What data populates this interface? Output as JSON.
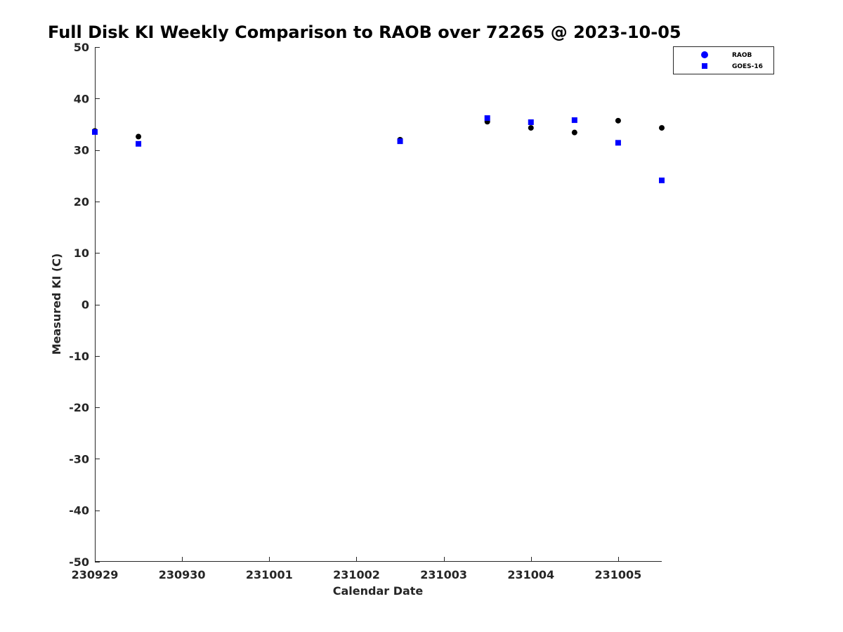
{
  "chart_data": {
    "type": "scatter",
    "title": "Full Disk KI Weekly Comparison to RAOB over 72265 @ 2023-10-05",
    "xlabel": "Calendar Date",
    "ylabel": "Measured KI (C)",
    "xlim": [
      "2023-09-29T00:00",
      "2023-10-05T12:00"
    ],
    "ylim": [
      -50,
      50
    ],
    "x_ticks": [
      {
        "date": "2023-09-29T00:00",
        "label": "230929"
      },
      {
        "date": "2023-09-30T00:00",
        "label": "230930"
      },
      {
        "date": "2023-10-01T00:00",
        "label": "231001"
      },
      {
        "date": "2023-10-02T00:00",
        "label": "231002"
      },
      {
        "date": "2023-10-03T00:00",
        "label": "231003"
      },
      {
        "date": "2023-10-04T00:00",
        "label": "231004"
      },
      {
        "date": "2023-10-05T00:00",
        "label": "231005"
      }
    ],
    "y_ticks": [
      50,
      40,
      30,
      20,
      10,
      0,
      -10,
      -20,
      -30,
      -40,
      -50
    ],
    "grid": false,
    "legend_position": "top-right",
    "series": [
      {
        "name": "RAOB",
        "marker": "circle",
        "color": "#000000",
        "legend_color": "#0000ff",
        "points": [
          {
            "x": "2023-09-29T00:00",
            "y": 33.7
          },
          {
            "x": "2023-09-29T12:00",
            "y": 32.6
          },
          {
            "x": "2023-10-02T12:00",
            "y": 32.0
          },
          {
            "x": "2023-10-03T12:00",
            "y": 35.5
          },
          {
            "x": "2023-10-04T00:00",
            "y": 34.3
          },
          {
            "x": "2023-10-04T12:00",
            "y": 33.4
          },
          {
            "x": "2023-10-05T00:00",
            "y": 35.7
          },
          {
            "x": "2023-10-05T12:00",
            "y": 34.3
          }
        ]
      },
      {
        "name": "GOES-16",
        "marker": "square",
        "color": "#0000ff",
        "points": [
          {
            "x": "2023-09-29T00:00",
            "y": 33.5
          },
          {
            "x": "2023-09-29T12:00",
            "y": 31.2
          },
          {
            "x": "2023-10-02T12:00",
            "y": 31.7
          },
          {
            "x": "2023-10-03T12:00",
            "y": 36.2
          },
          {
            "x": "2023-10-04T00:00",
            "y": 35.4
          },
          {
            "x": "2023-10-04T12:00",
            "y": 35.8
          },
          {
            "x": "2023-10-05T00:00",
            "y": 31.4
          },
          {
            "x": "2023-10-05T12:00",
            "y": 24.1
          }
        ]
      }
    ]
  }
}
